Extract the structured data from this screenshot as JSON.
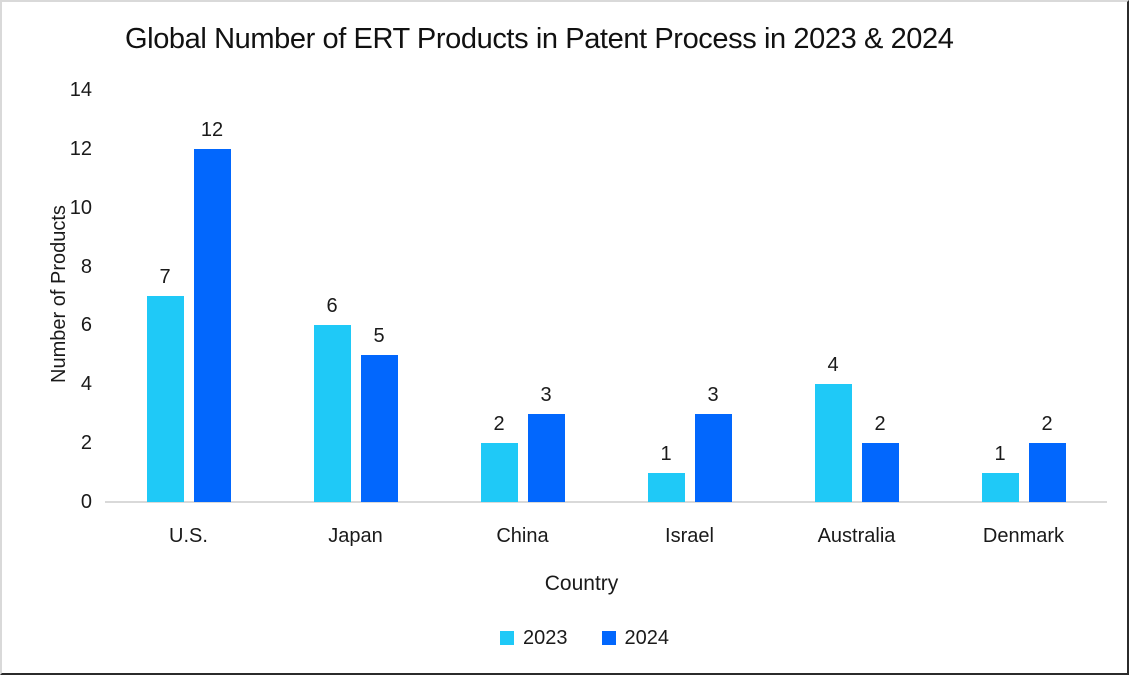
{
  "chart_data": {
    "type": "bar",
    "title": "Global Number of ERT Products in Patent Process in 2023 & 2024",
    "xlabel": "Country",
    "ylabel": "Number of Products",
    "categories": [
      "U.S.",
      "Japan",
      "China",
      "Israel",
      "Australia",
      "Denmark"
    ],
    "series": [
      {
        "name": "2023",
        "color": "#1FC9F7",
        "values": [
          7,
          6,
          2,
          1,
          4,
          1
        ]
      },
      {
        "name": "2024",
        "color": "#0267FD",
        "values": [
          12,
          5,
          3,
          3,
          2,
          2
        ]
      }
    ],
    "ylim": [
      0,
      14
    ],
    "yticks": [
      0,
      2,
      4,
      6,
      8,
      10,
      12,
      14
    ],
    "grid": false,
    "legend_position": "bottom",
    "data_labels": true
  },
  "colors": {
    "background": "#FFFFFF",
    "axis_line": "#D9D9D9",
    "text": "#1A1A1A",
    "series_2023": "#1FC9F7",
    "series_2024": "#0267FD"
  }
}
